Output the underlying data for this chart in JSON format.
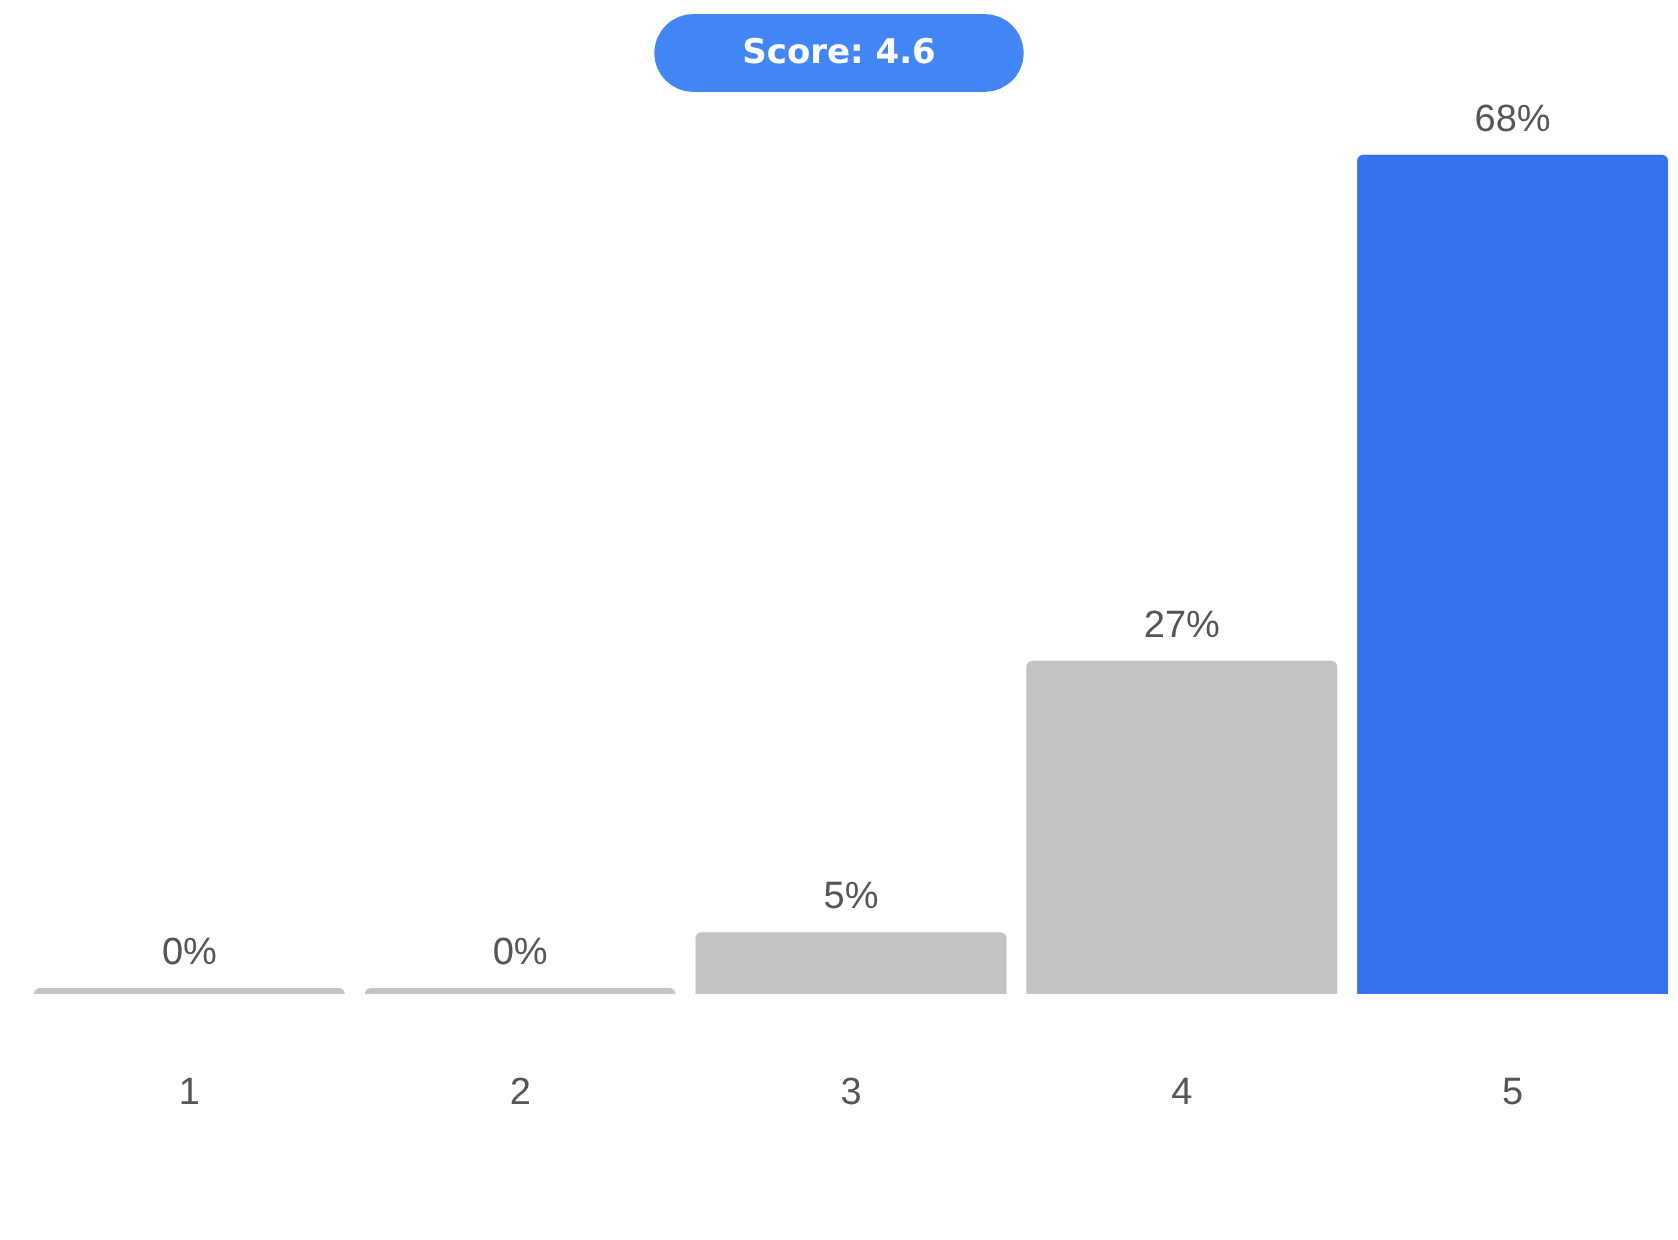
{
  "chart_data": {
    "type": "bar",
    "title": "Score: 4.6",
    "categories": [
      "1",
      "2",
      "3",
      "4",
      "5"
    ],
    "values": [
      0,
      0,
      5,
      27,
      68
    ],
    "value_labels": [
      "0%",
      "0%",
      "5%",
      "27%",
      "68%"
    ],
    "colors": [
      "#c4c4c4",
      "#c4c4c4",
      "#c4c4c4",
      "#c4c4c4",
      "#3574ee"
    ]
  }
}
